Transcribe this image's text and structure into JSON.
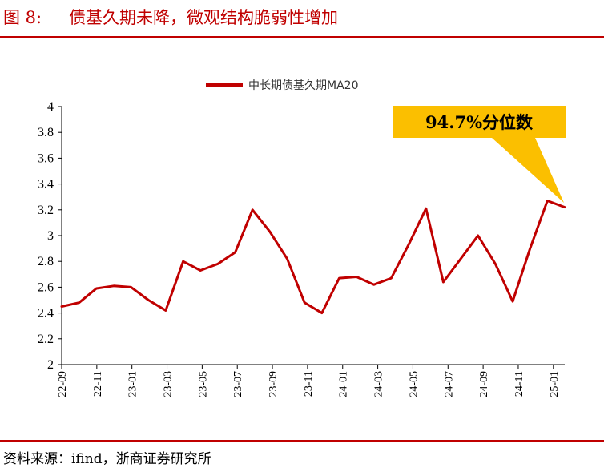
{
  "figure": {
    "number": "图 8:",
    "title": "债基久期未降，微观结构脆弱性增加",
    "source": "资料来源：ifind，浙商证券研究所"
  },
  "colors": {
    "accent": "#c00000",
    "series": "#c00000",
    "callout_fill": "#fbbf00"
  },
  "chart_data": {
    "type": "line",
    "title": "",
    "xlabel": "",
    "ylabel": "",
    "ylim": [
      2,
      4
    ],
    "yticks": [
      "2",
      "2.2",
      "2.4",
      "2.6",
      "2.8",
      "3",
      "3.2",
      "3.4",
      "3.6",
      "3.8",
      "4"
    ],
    "xticks": [
      "22-09",
      "22-11",
      "23-01",
      "23-03",
      "23-05",
      "23-07",
      "23-09",
      "23-11",
      "24-01",
      "24-03",
      "24-05",
      "24-07",
      "24-09",
      "24-11",
      "25-01"
    ],
    "grid": false,
    "legend": "top-center",
    "annotation": {
      "text": "94.7%分位数"
    },
    "series": [
      {
        "name": "中长期债基久期MA20",
        "x": [
          "22-09",
          "22-10",
          "22-11",
          "22-12",
          "23-01",
          "23-02",
          "23-03",
          "23-04",
          "23-05",
          "23-06",
          "23-07",
          "23-08",
          "23-09",
          "23-10",
          "23-11",
          "23-12",
          "24-01",
          "24-02",
          "24-03",
          "24-04",
          "24-05",
          "24-06",
          "24-07",
          "24-08",
          "24-09",
          "24-10",
          "24-11",
          "24-12",
          "25-01",
          "25-02"
        ],
        "values": [
          2.45,
          2.48,
          2.59,
          2.61,
          2.6,
          2.5,
          2.42,
          2.8,
          2.73,
          2.78,
          2.87,
          3.2,
          3.03,
          2.82,
          2.48,
          2.4,
          2.67,
          2.68,
          2.62,
          2.67,
          2.93,
          3.21,
          2.64,
          2.82,
          3.0,
          2.78,
          2.49,
          2.9,
          3.27,
          3.22
        ]
      }
    ]
  }
}
